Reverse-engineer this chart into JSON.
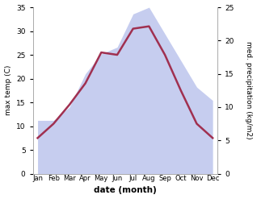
{
  "months": [
    "Jan",
    "Feb",
    "Mar",
    "Apr",
    "May",
    "Jun",
    "Jul",
    "Aug",
    "Sep",
    "Oct",
    "Nov",
    "Dec"
  ],
  "temperature": [
    7.5,
    10.5,
    14.5,
    19.0,
    25.5,
    25.0,
    30.5,
    31.0,
    25.0,
    17.5,
    10.5,
    7.5
  ],
  "precipitation": [
    8,
    8,
    10,
    15,
    18,
    19,
    24,
    25,
    21,
    17,
    13,
    11
  ],
  "temp_ylim": [
    0,
    35
  ],
  "precip_ylim": [
    0,
    25
  ],
  "temp_color": "#a03050",
  "precip_fill_color": "#c0c8ee",
  "precip_fill_alpha": 0.9,
  "xlabel": "date (month)",
  "ylabel_left": "max temp (C)",
  "ylabel_right": "med. precipitation (kg/m2)",
  "temp_yticks": [
    0,
    5,
    10,
    15,
    20,
    25,
    30,
    35
  ],
  "precip_yticks": [
    0,
    5,
    10,
    15,
    20,
    25
  ],
  "background_color": "#ffffff",
  "line_width": 1.8
}
